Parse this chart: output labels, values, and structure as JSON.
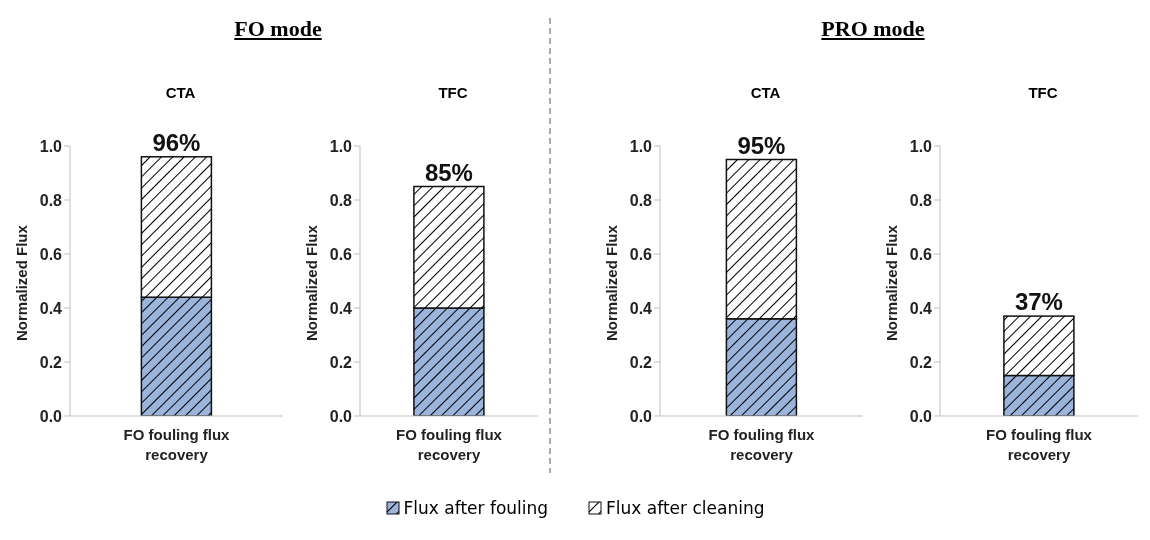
{
  "chart_data": [
    {
      "type": "bar",
      "title": "CTA",
      "annotations": [
        "FO mode"
      ],
      "ylabel": "Normalized Flux",
      "categories": [
        "FO fouling flux recovery"
      ],
      "stacked": true,
      "ylim": [
        0,
        1
      ],
      "yticks": [
        {
          "value": 0,
          "label": "0.0"
        },
        {
          "value": 0.2,
          "label": "0.2"
        },
        {
          "value": 0.4,
          "label": "0.4"
        },
        {
          "value": 0.6,
          "label": "0.6"
        },
        {
          "value": 0.8,
          "label": "0.8"
        },
        {
          "value": 1,
          "label": "1.0"
        }
      ],
      "totals": [
        "96%"
      ],
      "legend": "bottom",
      "series": [
        {
          "name": "Flux after fouling",
          "color": "#9bb4dc",
          "values": [
            0.44
          ]
        },
        {
          "name": "Flux after cleaning",
          "color": "#ffffff",
          "values": [
            0.52
          ]
        }
      ]
    },
    {
      "type": "bar",
      "title": "TFC",
      "ylabel": "Normalized Flux",
      "categories": [
        "FO fouling flux recovery"
      ],
      "stacked": true,
      "ylim": [
        0,
        1
      ],
      "yticks": [
        {
          "value": 0,
          "label": "0.0"
        },
        {
          "value": 0.2,
          "label": "0.2"
        },
        {
          "value": 0.4,
          "label": "0.4"
        },
        {
          "value": 0.6,
          "label": "0.6"
        },
        {
          "value": 0.8,
          "label": "0.8"
        },
        {
          "value": 1,
          "label": "1.0"
        }
      ],
      "totals": [
        "85%"
      ],
      "series": [
        {
          "color": "#9bb4dc",
          "values": [
            0.4
          ]
        },
        {
          "color": "#ffffff",
          "values": [
            0.45
          ]
        }
      ]
    },
    {
      "type": "bar",
      "title": "CTA",
      "annotations": [
        "PRO mode"
      ],
      "ylabel": "Normalized Flux",
      "categories": [
        "FO fouling flux recovery"
      ],
      "stacked": true,
      "ylim": [
        0,
        1
      ],
      "yticks": [
        {
          "value": 0,
          "label": "0.0"
        },
        {
          "value": 0.2,
          "label": "0.2"
        },
        {
          "value": 0.4,
          "label": "0.4"
        },
        {
          "value": 0.6,
          "label": "0.6"
        },
        {
          "value": 0.8,
          "label": "0.8"
        },
        {
          "value": 1,
          "label": "1.0"
        }
      ],
      "totals": [
        "95%"
      ],
      "series": [
        {
          "color": "#9bb4dc",
          "values": [
            0.36
          ]
        },
        {
          "color": "#ffffff",
          "values": [
            0.59
          ]
        }
      ]
    },
    {
      "type": "bar",
      "title": "TFC",
      "ylabel": "Normalized Flux",
      "categories": [
        "FO fouling flux recovery"
      ],
      "stacked": true,
      "ylim": [
        0,
        1
      ],
      "yticks": [
        {
          "value": 0,
          "label": "0.0"
        },
        {
          "value": 0.2,
          "label": "0.2"
        },
        {
          "value": 0.4,
          "label": "0.4"
        },
        {
          "value": 0.6,
          "label": "0.6"
        },
        {
          "value": 0.8,
          "label": "0.8"
        },
        {
          "value": 1,
          "label": "1.0"
        }
      ],
      "totals": [
        "37%"
      ],
      "series": [
        {
          "color": "#9bb4dc",
          "values": [
            0.15
          ]
        },
        {
          "color": "#ffffff",
          "values": [
            0.22
          ]
        }
      ]
    }
  ]
}
